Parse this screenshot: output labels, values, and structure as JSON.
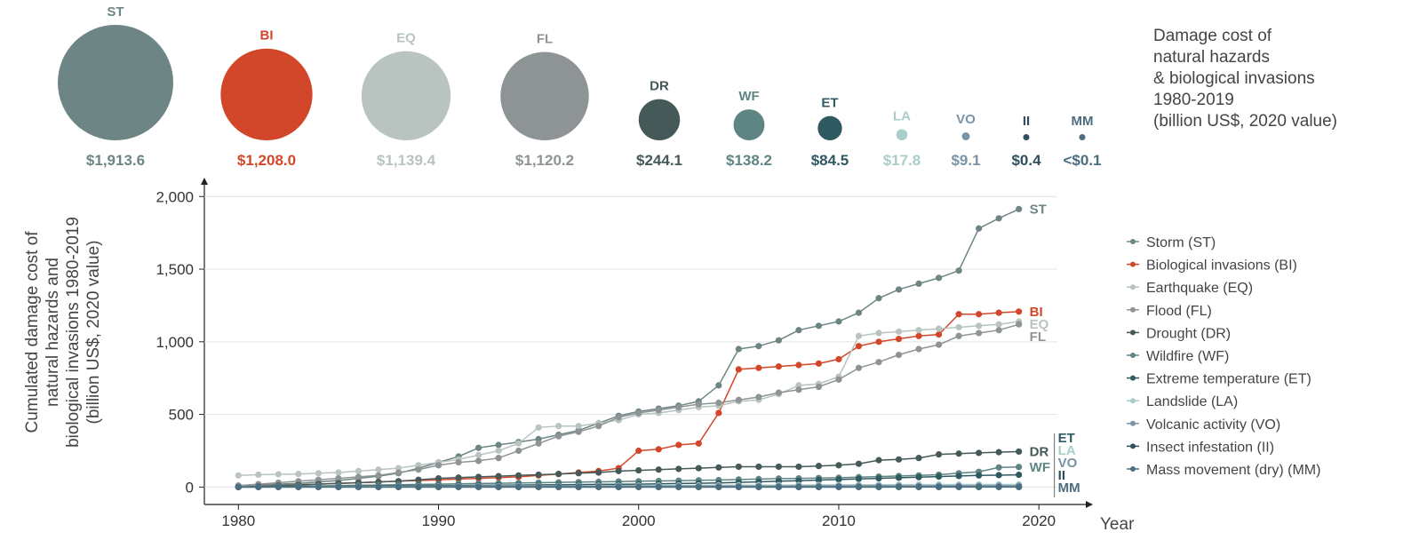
{
  "chart_data": {
    "type": "line",
    "note": [
      "Damage cost of",
      "natural hazards",
      "& biological invasions",
      "1980-2019",
      "(billion US$, 2020 value)"
    ],
    "y_label": [
      "Cumulated damage cost of",
      "natural hazards and",
      "biological invasions 1980-2019",
      "(billion US$, 2020 value)"
    ],
    "x_label": "Year",
    "x": [
      1980,
      1981,
      1982,
      1983,
      1984,
      1985,
      1986,
      1987,
      1988,
      1989,
      1990,
      1991,
      1992,
      1993,
      1994,
      1995,
      1996,
      1997,
      1998,
      1999,
      2000,
      2001,
      2002,
      2003,
      2004,
      2005,
      2006,
      2007,
      2008,
      2009,
      2010,
      2011,
      2012,
      2013,
      2014,
      2015,
      2016,
      2017,
      2018,
      2019
    ],
    "xlim": [
      1978.3,
      2022.7
    ],
    "xticks": [
      1980,
      1990,
      2000,
      2010,
      2020
    ],
    "ylim": [
      -120,
      2130
    ],
    "yticks": [
      0,
      {
        "value": 500,
        "label": "500"
      },
      {
        "value": 1000,
        "label": "1,000"
      },
      {
        "value": 1500,
        "label": "1,500"
      },
      {
        "value": 2000,
        "label": "2,000"
      }
    ],
    "series": [
      {
        "name": "Storm (ST)",
        "abbr": "ST",
        "color": "#6d8584",
        "total": 1913.6,
        "total_label": "$1,913.6",
        "values": [
          10,
          15,
          20,
          25,
          35,
          45,
          60,
          75,
          95,
          130,
          170,
          210,
          270,
          290,
          310,
          330,
          360,
          390,
          440,
          490,
          520,
          540,
          560,
          590,
          700,
          950,
          970,
          1010,
          1080,
          1110,
          1140,
          1200,
          1300,
          1360,
          1400,
          1440,
          1490,
          1780,
          1850,
          1913.6
        ]
      },
      {
        "name": "Biological invasions (BI)",
        "abbr": "BI",
        "color": "#d2472a",
        "total": 1208.0,
        "total_label": "$1,208.0",
        "values": [
          0,
          5,
          10,
          15,
          20,
          25,
          30,
          35,
          40,
          45,
          50,
          55,
          60,
          65,
          70,
          80,
          90,
          100,
          110,
          130,
          250,
          260,
          290,
          300,
          510,
          810,
          820,
          830,
          840,
          850,
          880,
          970,
          1000,
          1020,
          1040,
          1050,
          1190,
          1190,
          1200,
          1208.0
        ]
      },
      {
        "name": "Earthquake (EQ)",
        "abbr": "EQ",
        "color": "#b9c4c1",
        "total": 1139.4,
        "total_label": "$1,139.4",
        "values": [
          80,
          85,
          88,
          90,
          95,
          100,
          110,
          120,
          130,
          150,
          170,
          190,
          220,
          250,
          300,
          410,
          420,
          420,
          440,
          460,
          500,
          510,
          530,
          550,
          560,
          590,
          600,
          640,
          700,
          710,
          760,
          1040,
          1060,
          1070,
          1080,
          1090,
          1100,
          1110,
          1120,
          1139.4
        ]
      },
      {
        "name": "Flood (FL)",
        "abbr": "FL",
        "color": "#8e9496",
        "total": 1120.2,
        "total_label": "$1,120.2",
        "values": [
          10,
          20,
          30,
          40,
          50,
          60,
          70,
          80,
          100,
          120,
          150,
          170,
          180,
          200,
          250,
          300,
          350,
          380,
          420,
          480,
          510,
          530,
          550,
          570,
          580,
          600,
          620,
          650,
          670,
          690,
          740,
          820,
          860,
          910,
          950,
          980,
          1040,
          1060,
          1080,
          1120.2
        ]
      },
      {
        "name": "Drought (DR)",
        "abbr": "DR",
        "color": "#455a58",
        "total": 244.1,
        "total_label": "$244.1",
        "values": [
          0,
          5,
          10,
          15,
          20,
          25,
          30,
          35,
          40,
          50,
          60,
          65,
          70,
          75,
          80,
          85,
          90,
          95,
          100,
          110,
          115,
          120,
          125,
          130,
          135,
          140,
          140,
          140,
          140,
          145,
          150,
          160,
          185,
          190,
          200,
          225,
          230,
          235,
          240,
          244.1
        ]
      },
      {
        "name": "Wildfire (WF)",
        "abbr": "WF",
        "color": "#5e8584",
        "total": 138.2,
        "total_label": "$138.2",
        "values": [
          0,
          2,
          4,
          6,
          8,
          10,
          12,
          14,
          16,
          18,
          20,
          22,
          24,
          26,
          28,
          30,
          32,
          34,
          36,
          38,
          40,
          42,
          44,
          46,
          48,
          52,
          55,
          58,
          60,
          62,
          64,
          68,
          72,
          76,
          80,
          85,
          95,
          105,
          135,
          138.2
        ]
      },
      {
        "name": "Extreme temperature (ET)",
        "abbr": "ET",
        "color": "#2f5a62",
        "total": 84.5,
        "total_label": "$84.5",
        "values": [
          0,
          1,
          2,
          3,
          4,
          5,
          6,
          7,
          8,
          9,
          10,
          11,
          12,
          13,
          14,
          15,
          16,
          17,
          18,
          19,
          20,
          22,
          24,
          26,
          28,
          32,
          36,
          40,
          44,
          48,
          52,
          56,
          60,
          64,
          68,
          72,
          76,
          80,
          82,
          84.5
        ]
      },
      {
        "name": "Landslide (LA)",
        "abbr": "LA",
        "color": "#a9cdc8",
        "total": 17.8,
        "total_label": "$17.8",
        "values": [
          0,
          0.5,
          1,
          1.5,
          2,
          2.5,
          3,
          3.5,
          4,
          4.5,
          5,
          5.5,
          6,
          6.5,
          7,
          7.5,
          8,
          8.5,
          9,
          9.5,
          10,
          10.5,
          11,
          11.5,
          12,
          12.5,
          13,
          13.5,
          14,
          14.5,
          15,
          15.5,
          16,
          16.5,
          17,
          17.2,
          17.4,
          17.6,
          17.7,
          17.8
        ]
      },
      {
        "name": "Volcanic activity (VO)",
        "abbr": "VO",
        "color": "#7a93a5",
        "total": 9.1,
        "total_label": "$9.1",
        "values": [
          0,
          0.3,
          0.6,
          0.9,
          1.2,
          1.5,
          1.8,
          2.1,
          2.4,
          2.7,
          3,
          3.3,
          3.6,
          3.9,
          4.2,
          4.5,
          4.8,
          5.1,
          5.4,
          5.7,
          6,
          6.2,
          6.4,
          6.6,
          6.8,
          7,
          7.2,
          7.4,
          7.6,
          7.8,
          8,
          8.2,
          8.4,
          8.5,
          8.6,
          8.7,
          8.8,
          8.9,
          9,
          9.1
        ]
      },
      {
        "name": "Insect infestation (II)",
        "abbr": "II",
        "color": "#2e4f5c",
        "total": 0.4,
        "total_label": "$0.4",
        "values": [
          0,
          0,
          0,
          0,
          0,
          0,
          0,
          0,
          0,
          0,
          0,
          0,
          0,
          0,
          0,
          0,
          0,
          0,
          0,
          0,
          0,
          0,
          0,
          0,
          0,
          0,
          0,
          0,
          0,
          0,
          0,
          0.1,
          0.1,
          0.2,
          0.2,
          0.3,
          0.3,
          0.3,
          0.4,
          0.4
        ]
      },
      {
        "name": "Mass movement (dry) (MM)",
        "abbr": "MM",
        "color": "#4a6e80",
        "total": 0.05,
        "total_label": "<$0.1",
        "values": [
          0,
          0,
          0,
          0,
          0,
          0,
          0,
          0,
          0,
          0,
          0,
          0,
          0,
          0,
          0,
          0,
          0,
          0,
          0,
          0,
          0,
          0,
          0,
          0,
          0,
          0,
          0,
          0,
          0,
          0,
          0,
          0,
          0,
          0,
          0,
          0,
          0,
          0,
          0.05,
          0.05
        ]
      }
    ]
  }
}
